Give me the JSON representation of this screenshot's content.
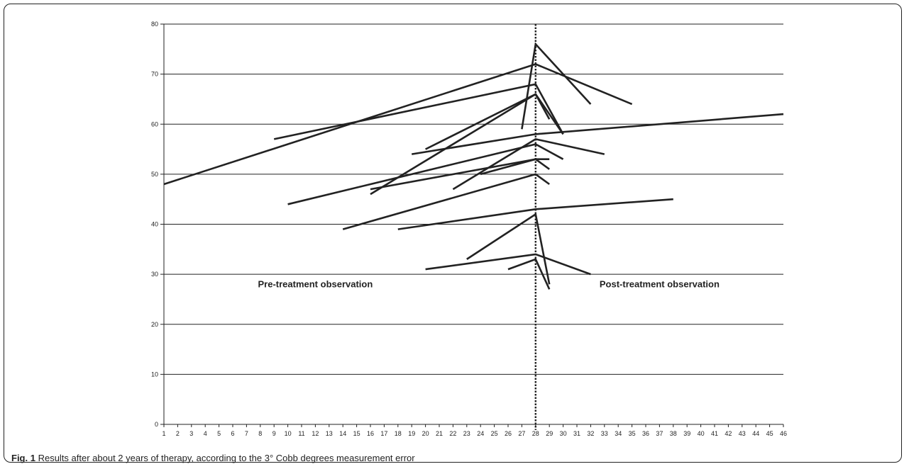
{
  "caption": {
    "label": "Fig. 1",
    "text": "Results after about 2 years of therapy, according to the 3° Cobb degrees measurement error"
  },
  "chart_data": {
    "type": "line",
    "title": "",
    "xlabel": "",
    "ylabel": "",
    "xlim": [
      1,
      46
    ],
    "ylim": [
      0,
      80
    ],
    "x_ticks": [
      1,
      2,
      3,
      4,
      5,
      6,
      7,
      8,
      9,
      10,
      11,
      12,
      13,
      14,
      15,
      16,
      17,
      18,
      19,
      20,
      21,
      22,
      23,
      24,
      25,
      26,
      27,
      28,
      29,
      30,
      31,
      32,
      33,
      34,
      35,
      36,
      37,
      38,
      39,
      40,
      41,
      42,
      43,
      44,
      45,
      46
    ],
    "y_ticks": [
      0,
      10,
      20,
      30,
      40,
      50,
      60,
      70,
      80
    ],
    "grid": "horizontal",
    "line_color": "#222222",
    "treatment_marker": {
      "x": 28,
      "style": "dotted"
    },
    "annotations": [
      {
        "text": "Pre-treatment observation",
        "x": 12,
        "y": 28
      },
      {
        "text": "Post-treatment observation",
        "x": 37,
        "y": 28
      }
    ],
    "series": [
      {
        "points": [
          [
            1,
            48
          ],
          [
            28,
            72
          ],
          [
            35,
            64
          ]
        ]
      },
      {
        "points": [
          [
            9,
            57
          ],
          [
            28,
            68
          ],
          [
            30,
            58
          ]
        ]
      },
      {
        "points": [
          [
            16,
            46
          ],
          [
            28,
            66
          ],
          [
            29,
            61
          ]
        ]
      },
      {
        "points": [
          [
            20,
            55
          ],
          [
            28,
            66
          ],
          [
            30,
            58
          ]
        ]
      },
      {
        "points": [
          [
            27,
            59
          ],
          [
            28,
            76
          ],
          [
            32,
            64
          ]
        ]
      },
      {
        "points": [
          [
            19,
            54
          ],
          [
            28,
            58
          ],
          [
            46,
            62
          ]
        ]
      },
      {
        "points": [
          [
            10,
            44
          ],
          [
            28,
            56
          ],
          [
            30,
            53
          ]
        ]
      },
      {
        "points": [
          [
            22,
            47
          ],
          [
            28,
            57
          ],
          [
            33,
            54
          ]
        ]
      },
      {
        "points": [
          [
            16,
            47
          ],
          [
            28,
            53
          ],
          [
            29,
            51
          ]
        ]
      },
      {
        "points": [
          [
            24,
            50
          ],
          [
            28,
            53
          ],
          [
            29,
            53
          ]
        ]
      },
      {
        "points": [
          [
            14,
            39
          ],
          [
            28,
            50
          ],
          [
            29,
            48
          ]
        ]
      },
      {
        "points": [
          [
            18,
            39
          ],
          [
            28,
            43
          ],
          [
            38,
            45
          ]
        ]
      },
      {
        "points": [
          [
            23,
            33
          ],
          [
            28,
            42
          ],
          [
            29,
            28
          ]
        ]
      },
      {
        "points": [
          [
            20,
            31
          ],
          [
            28,
            34
          ],
          [
            32,
            30
          ]
        ]
      },
      {
        "points": [
          [
            26,
            31
          ],
          [
            28,
            33
          ],
          [
            29,
            27
          ]
        ]
      }
    ]
  }
}
